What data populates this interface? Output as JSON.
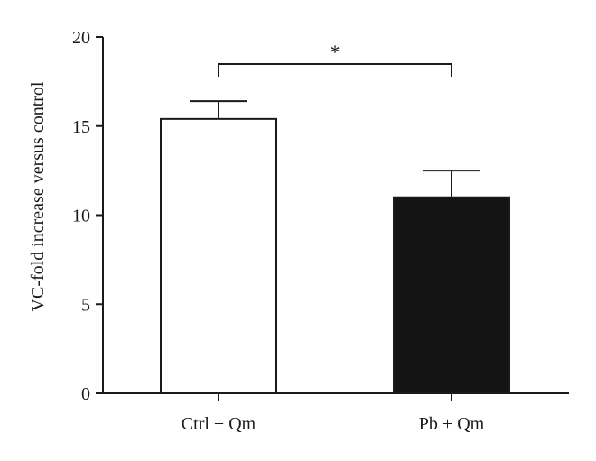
{
  "chart_data": {
    "type": "bar",
    "title": "",
    "xlabel": "",
    "ylabel": "VC-fold increase versus control",
    "ylim": [
      0,
      20
    ],
    "yticks": [
      0,
      5,
      10,
      15,
      20
    ],
    "categories": [
      "Ctrl + Qm",
      "Pb + Qm"
    ],
    "values": [
      15.4,
      11.0
    ],
    "error_upper": [
      1.0,
      1.5
    ],
    "bar_colors": [
      "#ffffff",
      "#141414"
    ],
    "bar_edge_color": "#1a1a1a",
    "grid": false,
    "legend": "none",
    "significance": {
      "between": [
        "Ctrl + Qm",
        "Pb + Qm"
      ],
      "label": "*"
    }
  }
}
